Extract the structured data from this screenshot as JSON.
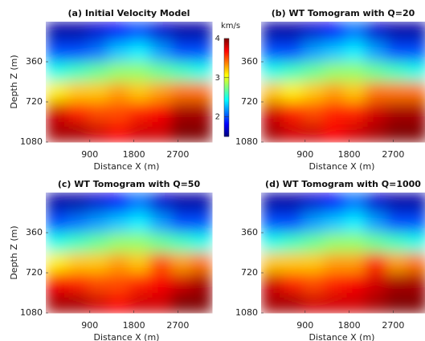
{
  "chart_data": [
    {
      "type": "heatmap",
      "title": "(a) Initial Velocity Model",
      "xlabel": "Distance X (m)",
      "ylabel": "Depth Z (m)",
      "x": [
        212.5,
        637.5,
        1062.5,
        1487.5,
        1912.5,
        2337.5,
        2762.5,
        3187.5
      ],
      "y": [
        90,
        270,
        450,
        630,
        810,
        990
      ],
      "z": [
        [
          1.6,
          1.6,
          1.7,
          1.8,
          2.0,
          1.7,
          1.6,
          1.6
        ],
        [
          2.0,
          2.0,
          2.1,
          2.3,
          2.4,
          2.2,
          2.0,
          2.0
        ],
        [
          2.5,
          2.6,
          2.7,
          2.8,
          2.8,
          2.7,
          2.6,
          2.5
        ],
        [
          3.1,
          3.2,
          3.2,
          3.3,
          3.2,
          3.3,
          3.4,
          3.4
        ],
        [
          3.8,
          3.6,
          3.5,
          3.5,
          3.6,
          3.7,
          3.9,
          3.9
        ],
        [
          3.9,
          3.9,
          3.8,
          3.7,
          3.8,
          3.8,
          4.0,
          4.0
        ]
      ],
      "xlim": [
        0,
        3400
      ],
      "ylim": [
        0,
        1080
      ],
      "xticks": [
        900,
        1800,
        2700
      ],
      "yticks": [
        360,
        720,
        1080
      ],
      "colormap": "jet",
      "clim": [
        1.5,
        4.0
      ],
      "colorbar": {
        "label": "km/s",
        "ticks": [
          2,
          3,
          4
        ]
      }
    },
    {
      "type": "heatmap",
      "title": "(b) WT Tomogram with Q=20",
      "xlabel": "Distance X (m)",
      "x": [
        212.5,
        637.5,
        1062.5,
        1487.5,
        1912.5,
        2337.5,
        2762.5,
        3187.5
      ],
      "y": [
        90,
        270,
        450,
        630,
        810,
        990
      ],
      "z": [
        [
          1.6,
          1.6,
          1.7,
          1.8,
          2.1,
          1.7,
          1.6,
          1.6
        ],
        [
          2.0,
          2.0,
          2.2,
          2.3,
          2.4,
          2.2,
          2.0,
          2.0
        ],
        [
          2.5,
          2.6,
          2.7,
          2.8,
          2.8,
          2.7,
          2.6,
          2.5
        ],
        [
          3.2,
          3.1,
          3.2,
          3.3,
          3.2,
          3.4,
          3.4,
          3.4
        ],
        [
          3.8,
          3.6,
          3.5,
          3.6,
          3.6,
          3.8,
          3.9,
          3.9
        ],
        [
          3.9,
          3.8,
          3.8,
          3.7,
          3.8,
          3.9,
          4.0,
          4.0
        ]
      ],
      "xlim": [
        0,
        3400
      ],
      "ylim": [
        0,
        1080
      ],
      "xticks": [
        900,
        1800,
        2700
      ],
      "yticks": [
        360,
        720,
        1080
      ],
      "colormap": "jet",
      "clim": [
        1.5,
        4.0
      ]
    },
    {
      "type": "heatmap",
      "title": "(c) WT Tomogram with Q=50",
      "xlabel": "Distance X (m)",
      "ylabel": "Depth Z (m)",
      "x": [
        212.5,
        637.5,
        1062.5,
        1487.5,
        1912.5,
        2337.5,
        2762.5,
        3187.5
      ],
      "y": [
        90,
        270,
        450,
        630,
        810,
        990
      ],
      "z": [
        [
          1.6,
          1.6,
          1.7,
          1.8,
          2.1,
          1.7,
          1.6,
          1.6
        ],
        [
          2.0,
          2.1,
          2.2,
          2.3,
          2.4,
          2.2,
          2.0,
          2.0
        ],
        [
          2.5,
          2.6,
          2.7,
          2.8,
          2.8,
          2.7,
          2.6,
          2.5
        ],
        [
          3.1,
          3.2,
          3.2,
          3.3,
          3.2,
          3.5,
          3.3,
          3.4
        ],
        [
          3.7,
          3.6,
          3.5,
          3.5,
          3.6,
          3.7,
          3.8,
          3.9
        ],
        [
          3.9,
          3.9,
          3.8,
          3.7,
          3.8,
          3.8,
          4.0,
          4.0
        ]
      ],
      "xlim": [
        0,
        3400
      ],
      "ylim": [
        0,
        1080
      ],
      "xticks": [
        900,
        1800,
        2700
      ],
      "yticks": [
        360,
        720,
        1080
      ],
      "colormap": "jet",
      "clim": [
        1.5,
        4.0
      ]
    },
    {
      "type": "heatmap",
      "title": "(d) WT Tomogram with Q=1000",
      "xlabel": "Distance X (m)",
      "x": [
        212.5,
        637.5,
        1062.5,
        1487.5,
        1912.5,
        2337.5,
        2762.5,
        3187.5
      ],
      "y": [
        90,
        270,
        450,
        630,
        810,
        990
      ],
      "z": [
        [
          1.6,
          1.6,
          1.7,
          1.8,
          2.1,
          1.7,
          1.6,
          1.6
        ],
        [
          2.0,
          2.0,
          2.2,
          2.3,
          2.4,
          2.2,
          2.0,
          2.0
        ],
        [
          2.5,
          2.6,
          2.7,
          2.8,
          2.8,
          2.7,
          2.6,
          2.5
        ],
        [
          3.2,
          3.2,
          3.2,
          3.3,
          3.3,
          3.6,
          3.3,
          3.4
        ],
        [
          3.8,
          3.6,
          3.5,
          3.6,
          3.7,
          3.8,
          3.9,
          3.9
        ],
        [
          3.9,
          3.9,
          3.8,
          3.8,
          3.8,
          3.9,
          4.0,
          4.0
        ]
      ],
      "xlim": [
        0,
        3400
      ],
      "ylim": [
        0,
        1080
      ],
      "xticks": [
        900,
        1800,
        2700
      ],
      "yticks": [
        360,
        720,
        1080
      ],
      "colormap": "jet",
      "clim": [
        1.5,
        4.0
      ]
    }
  ]
}
